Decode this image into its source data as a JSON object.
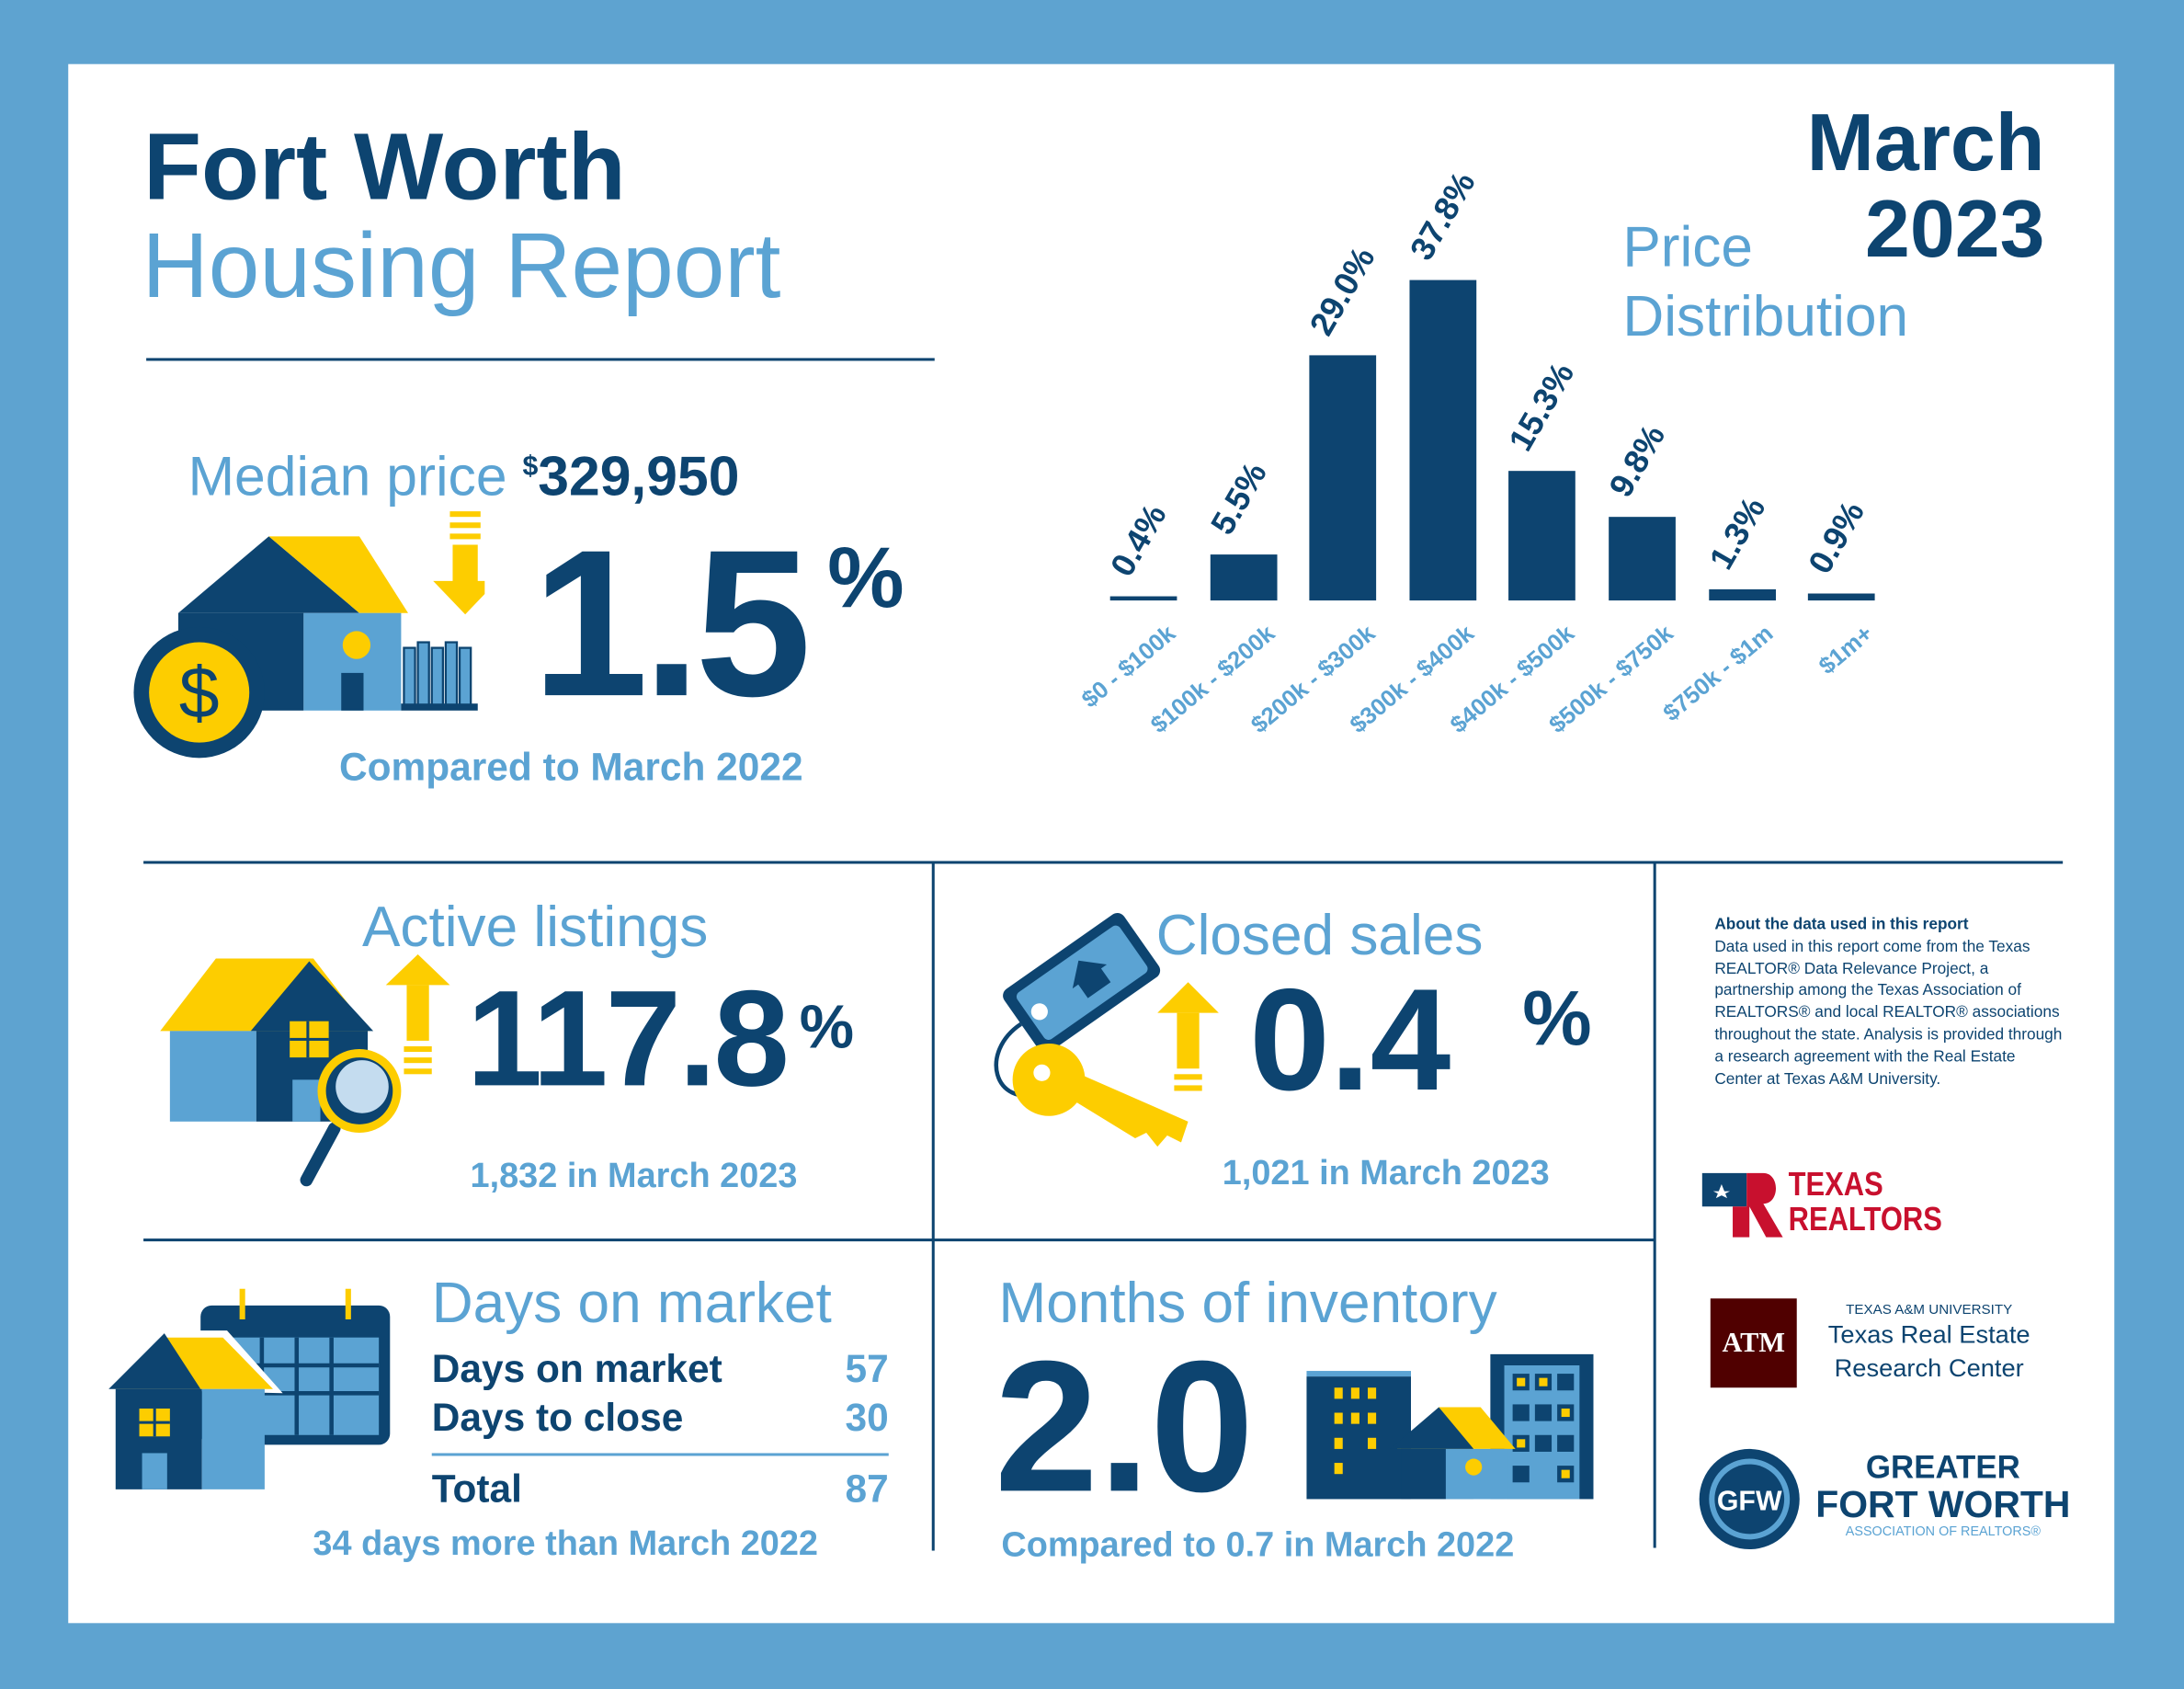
{
  "header": {
    "title_line1": "Fort Worth",
    "title_line2": "Housing Report",
    "month": "March",
    "year": "2023"
  },
  "median": {
    "label": "Median price",
    "currency": "$",
    "value": "329,950",
    "change": "1.5",
    "unit": "%",
    "direction": "down",
    "compare": "Compared to March 2022"
  },
  "chart_data": {
    "type": "bar",
    "title": "Price Distribution",
    "title_line1": "Price",
    "title_line2": "Distribution",
    "categories": [
      "$0 - $100k",
      "$100k - $200k",
      "$200k - $300k",
      "$300k - $400k",
      "$400k - $500k",
      "$500k - $750k",
      "$750k - $1m",
      "$1m+"
    ],
    "values": [
      0.4,
      5.5,
      29.0,
      37.8,
      15.3,
      9.8,
      1.3,
      0.9
    ],
    "labels": [
      "0.4%",
      "5.5%",
      "29.0%",
      "37.8%",
      "15.3%",
      "9.8%",
      "1.3%",
      "0.9%"
    ],
    "ylabel": "",
    "xlabel": "",
    "ylim": [
      0,
      40
    ],
    "color": "#0d4470"
  },
  "active": {
    "title": "Active listings",
    "change": "117.8",
    "unit": "%",
    "direction": "up",
    "sub": "1,832 in March 2023"
  },
  "closed": {
    "title": "Closed sales",
    "change": "0.4",
    "unit": "%",
    "direction": "up",
    "sub": "1,021 in March 2023"
  },
  "dom": {
    "title": "Days on market",
    "rows": [
      {
        "label": "Days on market",
        "value": "57"
      },
      {
        "label": "Days to close",
        "value": "30"
      }
    ],
    "total_label": "Total",
    "total_value": "87",
    "sub": "34 days more than March 2022"
  },
  "inventory": {
    "title": "Months of inventory",
    "value": "2.0",
    "sub": "Compared to 0.7 in March 2022"
  },
  "about": {
    "heading": "About the data used in this report",
    "body": "Data used in this report come from the Texas REALTOR® Data Relevance Project, a partnership among the Texas Association of REALTORS® and local REALTOR® associations throughout the state. Analysis is provided through a research agreement with the Real Estate Center at Texas A&M University."
  },
  "logos": {
    "tr_line1": "TEXAS",
    "tr_line2": "REALTORS",
    "tamu_small": "TEXAS A&M UNIVERSITY",
    "tamu_line1": "Texas Real Estate",
    "tamu_line2": "Research Center",
    "tamu_mark": "ATM",
    "gfw_line1": "GREATER",
    "gfw_line2": "FORT WORTH",
    "gfw_line3": "ASSOCIATION OF REALTORS®",
    "gfw_mark": "GFW"
  },
  "colors": {
    "navy": "#0d4470",
    "light_blue": "#5ba3d3",
    "yellow": "#fdcd00",
    "frame": "#5ea3d0",
    "maroon": "#500000",
    "red": "#c8102e"
  }
}
